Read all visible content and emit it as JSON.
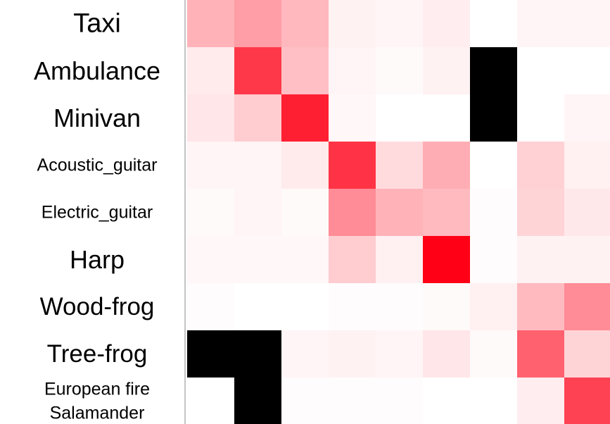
{
  "chart_data": {
    "type": "heatmap",
    "rows": [
      {
        "label_lines": [
          "Taxi"
        ]
      },
      {
        "label_lines": [
          "Ambulance"
        ]
      },
      {
        "label_lines": [
          "Minivan"
        ]
      },
      {
        "label_lines": [
          "Acoustic_guitar"
        ]
      },
      {
        "label_lines": [
          "Electric_guitar"
        ]
      },
      {
        "label_lines": [
          "Harp"
        ]
      },
      {
        "label_lines": [
          "Wood-frog"
        ]
      },
      {
        "label_lines": [
          "Tree-frog"
        ]
      },
      {
        "label_lines": [
          "European fire",
          "Salamander"
        ]
      }
    ],
    "columns": 9,
    "color_scale": {
      "low": "#ffffff",
      "high": "#ff0016",
      "missing": "#000000"
    },
    "values": [
      [
        0.3,
        0.38,
        0.28,
        0.05,
        0.04,
        0.07,
        0.0,
        0.04,
        0.04
      ],
      [
        0.08,
        0.78,
        0.25,
        0.04,
        0.02,
        0.05,
        null,
        0.0,
        0.0
      ],
      [
        0.1,
        0.2,
        0.88,
        0.03,
        0.0,
        0.0,
        null,
        0.0,
        0.04
      ],
      [
        0.04,
        0.04,
        0.08,
        0.8,
        0.14,
        0.32,
        0.0,
        0.18,
        0.06
      ],
      [
        0.02,
        0.04,
        0.02,
        0.45,
        0.3,
        0.27,
        0.01,
        0.17,
        0.09
      ],
      [
        0.03,
        0.03,
        0.03,
        0.2,
        0.06,
        1.0,
        0.01,
        0.05,
        0.05
      ],
      [
        0.01,
        0.0,
        0.0,
        0.01,
        0.01,
        0.02,
        0.06,
        0.27,
        0.45
      ],
      [
        null,
        null,
        0.04,
        0.05,
        0.04,
        0.1,
        0.02,
        0.62,
        0.17
      ],
      [
        0.0,
        null,
        0.01,
        0.01,
        0.01,
        0.0,
        0.0,
        0.07,
        0.74
      ]
    ]
  }
}
